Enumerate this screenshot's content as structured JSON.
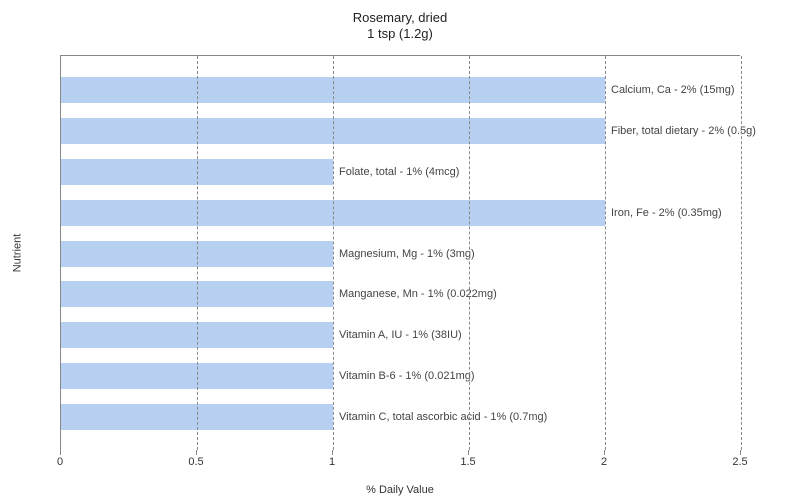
{
  "chart": {
    "type": "bar-horizontal",
    "title_line1": "Rosemary, dried",
    "title_line2": "1 tsp (1.2g)",
    "x_axis_label": "% Daily Value",
    "y_axis_label": "Nutrient",
    "x_min": 0,
    "x_max": 2.5,
    "x_ticks": [
      0,
      0.5,
      1,
      1.5,
      2,
      2.5
    ],
    "bar_color": "#b7d0f1",
    "grid_color": "#888888",
    "background_color": "#ffffff",
    "title_fontsize": 13,
    "axis_label_fontsize": 11,
    "tick_fontsize": 11,
    "bar_label_fontsize": 11,
    "bars": [
      {
        "label": "Calcium, Ca - 2% (15mg)",
        "value": 2
      },
      {
        "label": "Fiber, total dietary - 2% (0.5g)",
        "value": 2
      },
      {
        "label": "Folate, total - 1% (4mcg)",
        "value": 1
      },
      {
        "label": "Iron, Fe - 2% (0.35mg)",
        "value": 2
      },
      {
        "label": "Magnesium, Mg - 1% (3mg)",
        "value": 1
      },
      {
        "label": "Manganese, Mn - 1% (0.022mg)",
        "value": 1
      },
      {
        "label": "Vitamin A, IU - 1% (38IU)",
        "value": 1
      },
      {
        "label": "Vitamin B-6 - 1% (0.021mg)",
        "value": 1
      },
      {
        "label": "Vitamin C, total ascorbic acid - 1% (0.7mg)",
        "value": 1
      }
    ]
  }
}
